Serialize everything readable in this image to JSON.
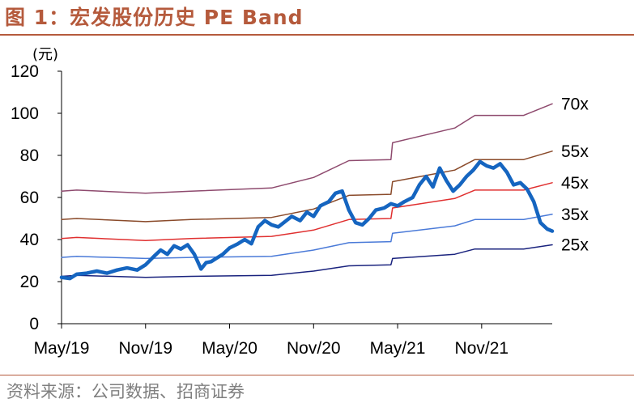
{
  "header": {
    "title": "图 1：宏发股份历史 PE Band"
  },
  "footer": {
    "source": "资料来源：公司数据、招商证券"
  },
  "chart_data": {
    "type": "line",
    "title": "",
    "ylabel": "(元)",
    "xlabel": "",
    "ylim": [
      0,
      120
    ],
    "yticks": [
      0,
      20,
      40,
      60,
      80,
      100,
      120
    ],
    "xlim": [
      2019.33,
      2022.25
    ],
    "xticks": [
      {
        "label": "May/19",
        "x": 2019.33
      },
      {
        "label": "Nov/19",
        "x": 2019.83
      },
      {
        "label": "May/20",
        "x": 2020.33
      },
      {
        "label": "Nov/20",
        "x": 2020.83
      },
      {
        "label": "May/21",
        "x": 2021.33
      },
      {
        "label": "Nov/21",
        "x": 2021.83
      }
    ],
    "grid": false,
    "series": [
      {
        "name": "70x",
        "color": "#8e4a6e",
        "width": 1.5,
        "x": [
          2019.33,
          2019.42,
          2019.83,
          2020.1,
          2020.58,
          2020.83,
          2021.04,
          2021.29,
          2021.3,
          2021.67,
          2021.79,
          2022.08,
          2022.25
        ],
        "y": [
          63,
          63.5,
          62,
          63,
          64.5,
          69.5,
          77.5,
          78,
          86,
          93,
          99,
          99,
          104.5
        ]
      },
      {
        "name": "55x",
        "color": "#8a4a2a",
        "width": 1.5,
        "x": [
          2019.33,
          2019.42,
          2019.83,
          2020.1,
          2020.58,
          2020.83,
          2021.04,
          2021.29,
          2021.3,
          2021.67,
          2021.79,
          2022.08,
          2022.25
        ],
        "y": [
          49.5,
          50,
          48.5,
          49.5,
          50.5,
          54.5,
          61,
          61.5,
          67.5,
          73,
          78,
          78,
          82
        ]
      },
      {
        "name": "45x",
        "color": "#e03030",
        "width": 1.5,
        "x": [
          2019.33,
          2019.42,
          2019.83,
          2020.1,
          2020.58,
          2020.83,
          2021.04,
          2021.29,
          2021.3,
          2021.67,
          2021.79,
          2022.08,
          2022.25
        ],
        "y": [
          40.5,
          41,
          39.5,
          40.5,
          41.5,
          44.5,
          49.5,
          50,
          55,
          59.5,
          63.5,
          63.5,
          67
        ]
      },
      {
        "name": "35x",
        "color": "#4a7ad8",
        "width": 1.5,
        "x": [
          2019.33,
          2019.42,
          2019.83,
          2020.1,
          2020.58,
          2020.83,
          2021.04,
          2021.29,
          2021.3,
          2021.67,
          2021.79,
          2022.08,
          2022.25
        ],
        "y": [
          31.5,
          32,
          31,
          31.5,
          32,
          35,
          38.5,
          39,
          43,
          46.5,
          49.5,
          49.5,
          52
        ]
      },
      {
        "name": "25x",
        "color": "#1a237e",
        "width": 1.5,
        "x": [
          2019.33,
          2019.42,
          2019.83,
          2020.1,
          2020.58,
          2020.83,
          2021.04,
          2021.29,
          2021.3,
          2021.67,
          2021.79,
          2022.08,
          2022.25
        ],
        "y": [
          22.5,
          23,
          22,
          22.5,
          23,
          25,
          27.5,
          28,
          31,
          33,
          35.5,
          35.5,
          37.5
        ]
      },
      {
        "name": "",
        "color": "#1565c0",
        "width": 4.5,
        "x": [
          2019.33,
          2019.38,
          2019.42,
          2019.48,
          2019.54,
          2019.6,
          2019.66,
          2019.72,
          2019.78,
          2019.83,
          2019.88,
          2019.92,
          2019.96,
          2020.0,
          2020.04,
          2020.08,
          2020.12,
          2020.16,
          2020.19,
          2020.22,
          2020.25,
          2020.29,
          2020.33,
          2020.38,
          2020.42,
          2020.46,
          2020.5,
          2020.54,
          2020.58,
          2020.62,
          2020.66,
          2020.7,
          2020.75,
          2020.79,
          2020.83,
          2020.87,
          2020.92,
          2020.96,
          2021.0,
          2021.04,
          2021.08,
          2021.12,
          2021.16,
          2021.2,
          2021.25,
          2021.29,
          2021.33,
          2021.37,
          2021.42,
          2021.46,
          2021.5,
          2021.54,
          2021.58,
          2021.62,
          2021.66,
          2021.7,
          2021.74,
          2021.78,
          2021.82,
          2021.86,
          2021.9,
          2021.94,
          2021.98,
          2022.02,
          2022.06,
          2022.1,
          2022.14,
          2022.18,
          2022.22,
          2022.25
        ],
        "y": [
          22,
          21.5,
          23.5,
          24,
          25,
          24,
          25.5,
          26.5,
          25.5,
          28,
          32,
          35,
          33,
          37,
          35.5,
          37.5,
          33,
          26,
          29,
          29.5,
          31,
          33,
          36,
          38,
          40,
          38,
          46,
          49,
          47,
          46,
          48.5,
          51,
          49,
          53,
          51,
          56,
          58,
          62,
          63,
          54,
          48,
          47,
          50,
          54,
          55,
          57,
          56,
          58,
          60,
          66,
          70,
          65,
          74,
          68,
          63,
          66,
          70,
          73,
          77,
          75,
          74,
          76,
          72,
          66,
          67,
          64,
          58,
          48,
          45,
          44
        ]
      }
    ],
    "band_labels": [
      "70x",
      "55x",
      "45x",
      "35x",
      "25x"
    ]
  }
}
